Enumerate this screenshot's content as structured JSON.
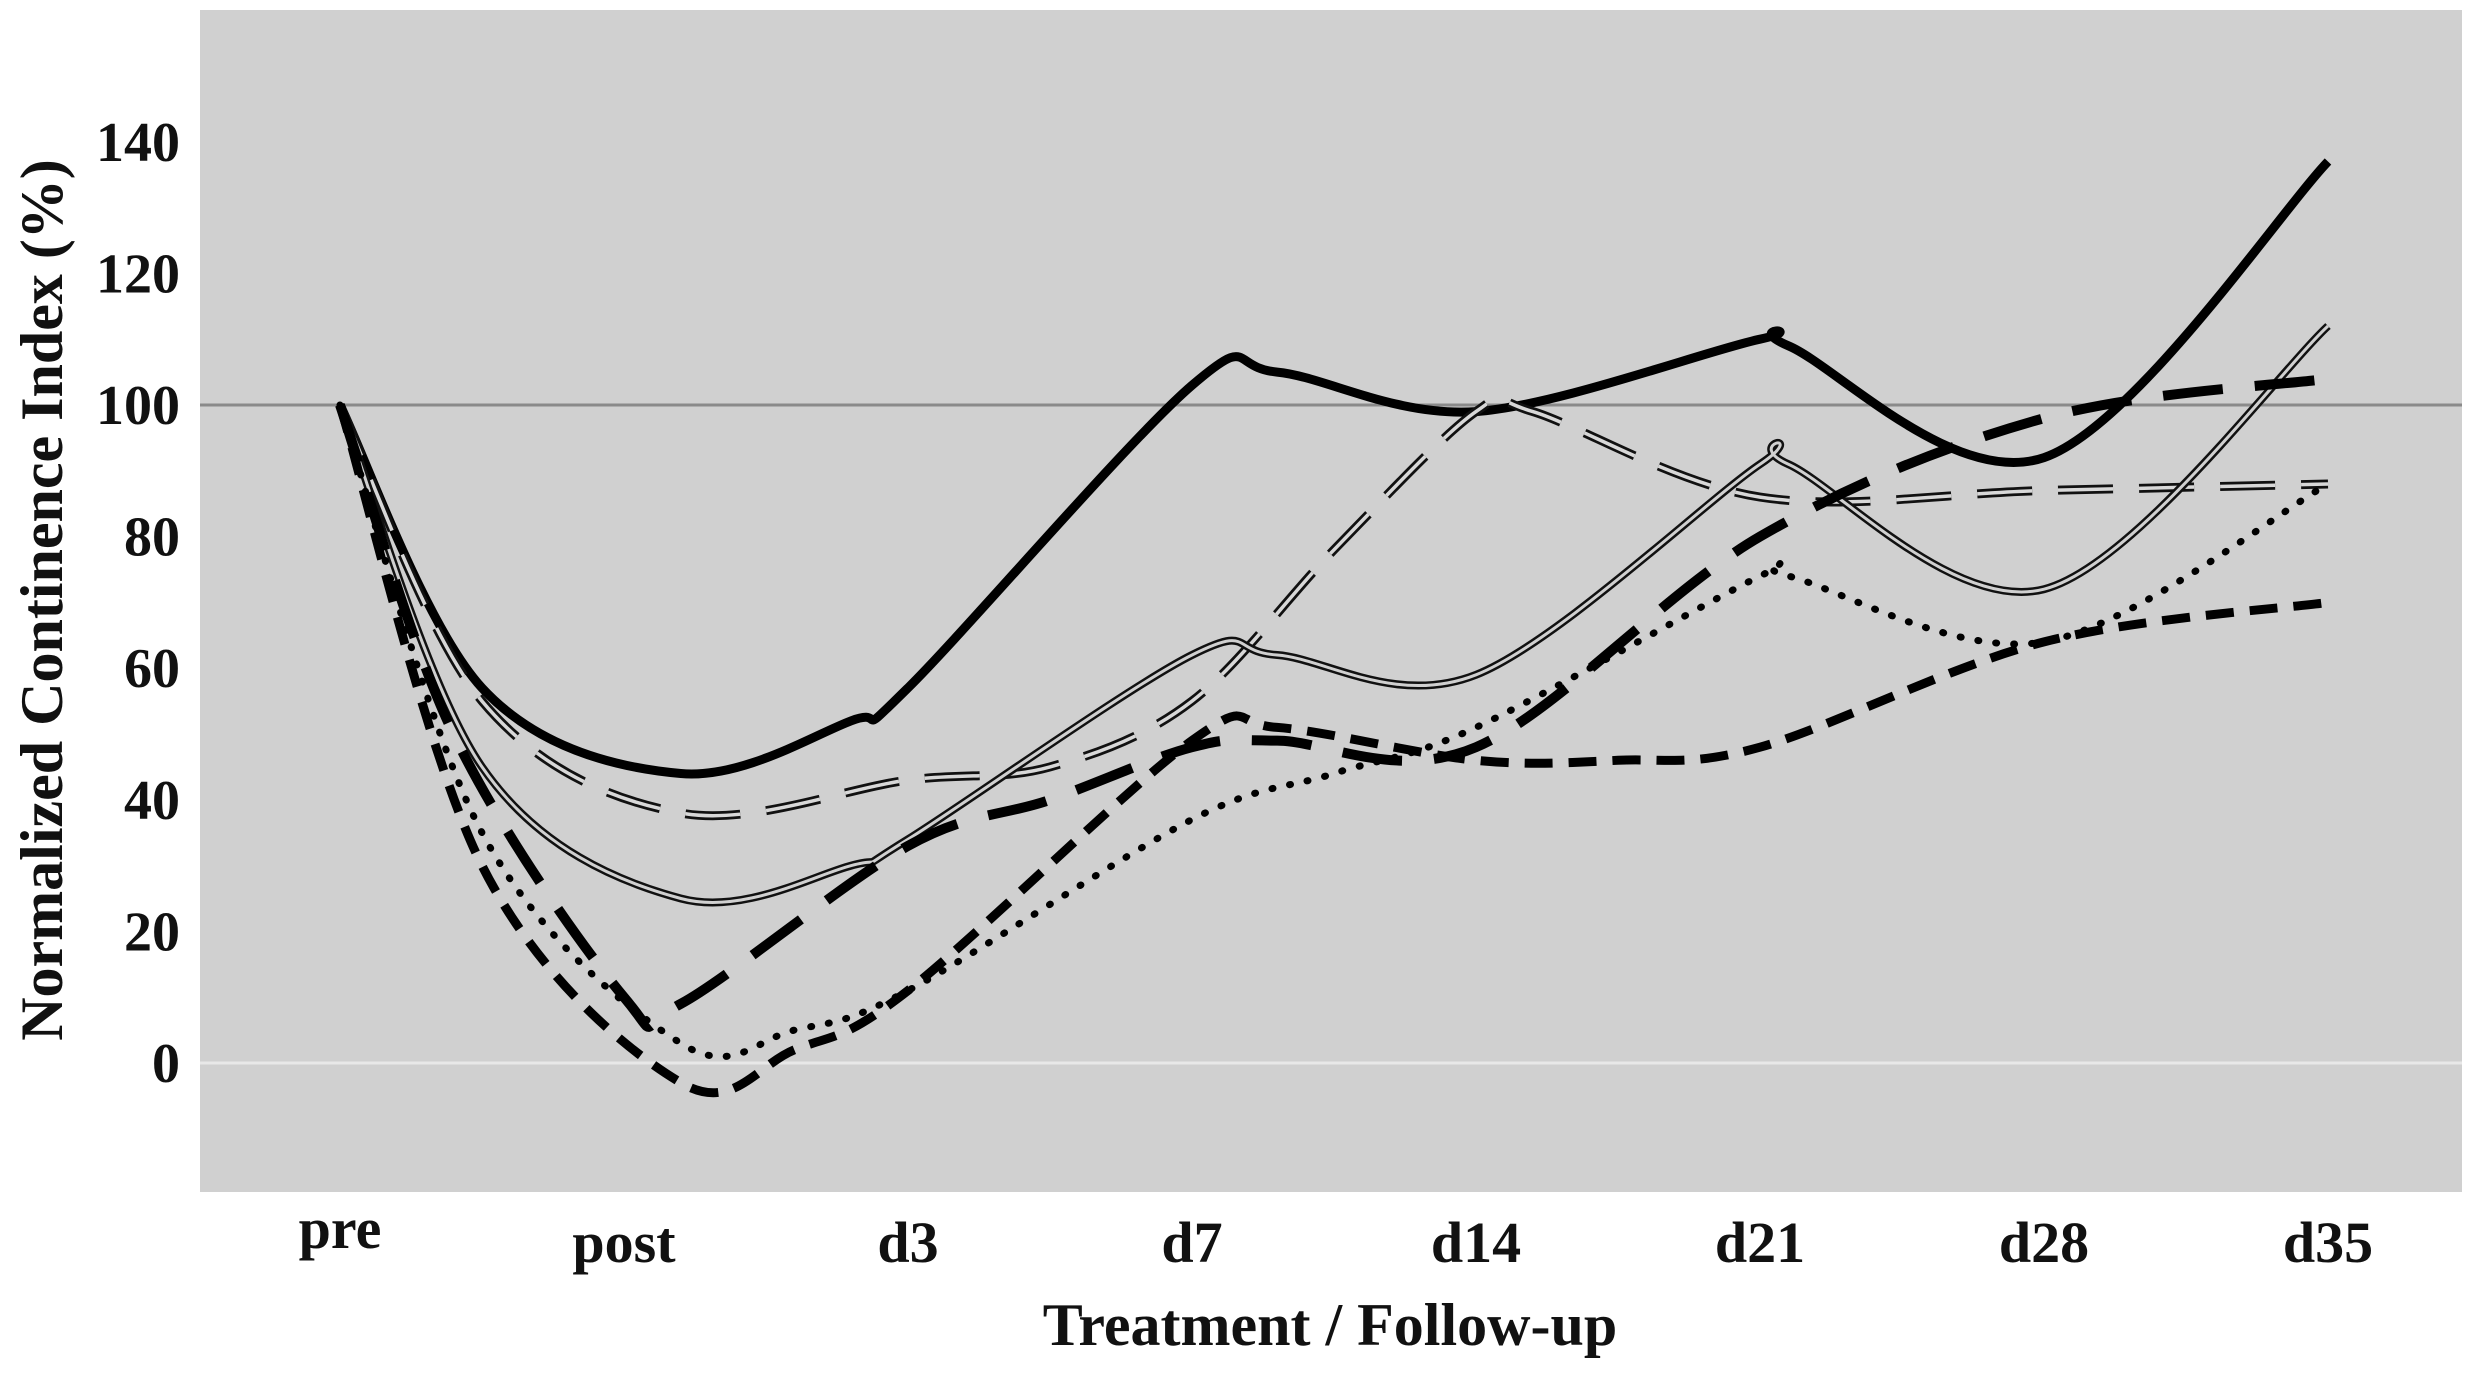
{
  "chart_data": {
    "type": "line",
    "title": "",
    "xlabel": "Treatment / Follow-up",
    "ylabel": "Normalized Continence Index (%)",
    "categories": [
      "pre",
      "post",
      "d3",
      "d7",
      "d14",
      "d21",
      "d28",
      "d35"
    ],
    "ylim": [
      -20,
      160
    ],
    "yticks": [
      0,
      20,
      40,
      60,
      80,
      100,
      120,
      140
    ],
    "reference_lines": [
      {
        "name": "baseline-100",
        "y": 100,
        "color": "#8a8a8a"
      },
      {
        "name": "zero-line",
        "y": 0,
        "color": "#e8e8e8"
      }
    ],
    "grid": false,
    "legend": "none",
    "background_color": "#d0d0d0",
    "series": [
      {
        "name": "series-1",
        "style": "solid-thick",
        "values": [
          100,
          45,
          57,
          104,
          99,
          110,
          92,
          137
        ],
        "points": [
          [
            0,
            100
          ],
          [
            0.5,
            57
          ],
          [
            1.2,
            44
          ],
          [
            1.8,
            52
          ],
          [
            2,
            57
          ],
          [
            3,
            103
          ],
          [
            3.3,
            105
          ],
          [
            4,
            99
          ],
          [
            5,
            110
          ],
          [
            5.1,
            109
          ],
          [
            6,
            92
          ],
          [
            7,
            137
          ]
        ]
      },
      {
        "name": "series-2",
        "style": "dashed-outline",
        "values": [
          100,
          38,
          43,
          55,
          99,
          86,
          87,
          88
        ],
        "points": [
          [
            0,
            100
          ],
          [
            0.5,
            55
          ],
          [
            1.2,
            38
          ],
          [
            2,
            43
          ],
          [
            2.5,
            45
          ],
          [
            3,
            55
          ],
          [
            3.5,
            78
          ],
          [
            4,
            99
          ],
          [
            4.2,
            99
          ],
          [
            5,
            86
          ],
          [
            6,
            87
          ],
          [
            7,
            88
          ]
        ]
      },
      {
        "name": "series-3",
        "style": "double-line",
        "values": [
          100,
          25,
          34,
          62,
          59,
          91,
          72,
          112
        ],
        "points": [
          [
            0,
            100
          ],
          [
            0.5,
            45
          ],
          [
            1.2,
            25
          ],
          [
            1.8,
            30
          ],
          [
            2,
            34
          ],
          [
            3,
            62
          ],
          [
            3.3,
            62
          ],
          [
            4,
            59
          ],
          [
            5,
            91
          ],
          [
            5.1,
            91
          ],
          [
            6,
            72
          ],
          [
            7,
            112
          ]
        ]
      },
      {
        "name": "series-4",
        "style": "long-dash-thick",
        "values": [
          100,
          9,
          33,
          49,
          48,
          80,
          98,
          104
        ],
        "points": [
          [
            0,
            100
          ],
          [
            0.4,
            50
          ],
          [
            1,
            10
          ],
          [
            1.2,
            9
          ],
          [
            2,
            33
          ],
          [
            2.5,
            40
          ],
          [
            3,
            48
          ],
          [
            3.3,
            49
          ],
          [
            4,
            48
          ],
          [
            5,
            80
          ],
          [
            6,
            98
          ],
          [
            7,
            104
          ]
        ]
      },
      {
        "name": "series-5",
        "style": "dotted",
        "values": [
          100,
          3,
          11,
          37,
          51,
          74,
          64,
          88
        ],
        "points": [
          [
            0,
            100
          ],
          [
            0.5,
            35
          ],
          [
            1.2,
            3
          ],
          [
            1.6,
            5
          ],
          [
            2,
            11
          ],
          [
            3,
            37
          ],
          [
            3.5,
            44
          ],
          [
            4,
            51
          ],
          [
            5,
            74
          ],
          [
            5.1,
            74
          ],
          [
            6,
            64
          ],
          [
            7,
            88
          ]
        ]
      },
      {
        "name": "series-6",
        "style": "short-dash-thick",
        "values": [
          100,
          -3,
          11,
          51,
          46,
          48,
          64,
          70
        ],
        "points": [
          [
            0,
            100
          ],
          [
            0.5,
            30
          ],
          [
            1.2,
            -3
          ],
          [
            1.6,
            2
          ],
          [
            2,
            11
          ],
          [
            3,
            49
          ],
          [
            3.3,
            51
          ],
          [
            4,
            46
          ],
          [
            4.5,
            46
          ],
          [
            5,
            48
          ],
          [
            6,
            64
          ],
          [
            7,
            70
          ]
        ]
      }
    ]
  }
}
